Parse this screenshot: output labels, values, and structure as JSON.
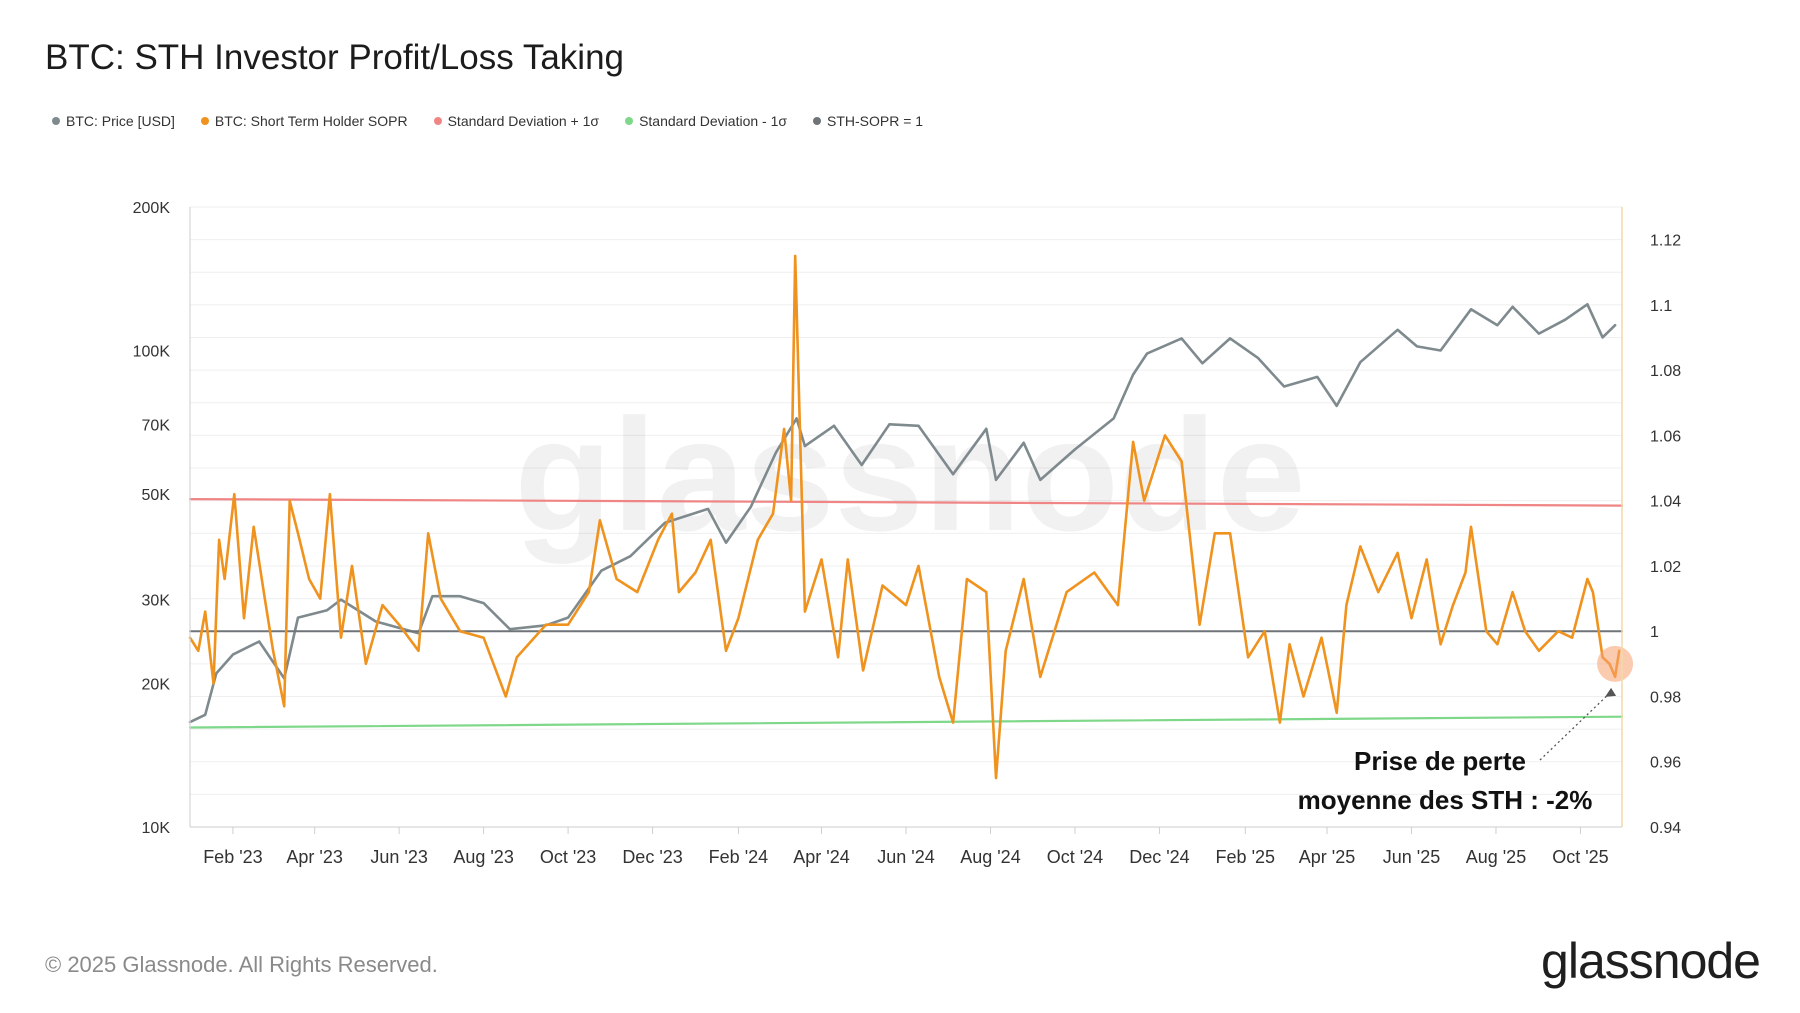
{
  "title": "BTC: STH Investor Profit/Loss Taking",
  "legend": [
    {
      "label": "BTC: Price [USD]",
      "color": "#7f8a8e"
    },
    {
      "label": "BTC: Short Term Holder SOPR",
      "color": "#f0921e"
    },
    {
      "label": "Standard Deviation + 1σ",
      "color": "#ef8585"
    },
    {
      "label": "Standard Deviation - 1σ",
      "color": "#7fd88a"
    },
    {
      "label": "STH-SOPR = 1",
      "color": "#6f7478"
    }
  ],
  "footer": "© 2025 Glassnode. All Rights Reserved.",
  "logo": "glassnode",
  "watermark": "glassnode",
  "annotation": {
    "line1": "Prise de perte",
    "line2": "moyenne des STH : -2%"
  },
  "chart_data": {
    "type": "line",
    "title": "BTC: STH Investor Profit/Loss Taking",
    "x_range": [
      "2023-01-01",
      "2025-10-31"
    ],
    "x_ticks": [
      {
        "label": "Feb '23",
        "date": "2023-02-01"
      },
      {
        "label": "Apr '23",
        "date": "2023-04-01"
      },
      {
        "label": "Jun '23",
        "date": "2023-06-01"
      },
      {
        "label": "Aug '23",
        "date": "2023-08-01"
      },
      {
        "label": "Oct '23",
        "date": "2023-10-01"
      },
      {
        "label": "Dec '23",
        "date": "2023-12-01"
      },
      {
        "label": "Feb '24",
        "date": "2024-02-01"
      },
      {
        "label": "Apr '24",
        "date": "2024-04-01"
      },
      {
        "label": "Jun '24",
        "date": "2024-06-01"
      },
      {
        "label": "Aug '24",
        "date": "2024-08-01"
      },
      {
        "label": "Oct '24",
        "date": "2024-10-01"
      },
      {
        "label": "Dec '24",
        "date": "2024-12-01"
      },
      {
        "label": "Feb '25",
        "date": "2025-02-01"
      },
      {
        "label": "Apr '25",
        "date": "2025-04-01"
      },
      {
        "label": "Jun '25",
        "date": "2025-06-01"
      },
      {
        "label": "Aug '25",
        "date": "2025-08-01"
      },
      {
        "label": "Oct '25",
        "date": "2025-10-01"
      }
    ],
    "y_left": {
      "scale": "log",
      "range": [
        10000,
        200000
      ],
      "ticks": [
        {
          "v": 10000,
          "label": "10K"
        },
        {
          "v": 20000,
          "label": "20K"
        },
        {
          "v": 30000,
          "label": "30K"
        },
        {
          "v": 50000,
          "label": "50K"
        },
        {
          "v": 70000,
          "label": "70K"
        },
        {
          "v": 100000,
          "label": "100K"
        },
        {
          "v": 200000,
          "label": "200K"
        }
      ]
    },
    "y_right": {
      "scale": "linear",
      "range": [
        0.94,
        1.13
      ],
      "ticks": [
        {
          "v": 0.94,
          "label": "0.94"
        },
        {
          "v": 0.96,
          "label": "0.96"
        },
        {
          "v": 0.98,
          "label": "0.98"
        },
        {
          "v": 1.0,
          "label": "1"
        },
        {
          "v": 1.02,
          "label": "1.02"
        },
        {
          "v": 1.04,
          "label": "1.04"
        },
        {
          "v": 1.06,
          "label": "1.06"
        },
        {
          "v": 1.08,
          "label": "1.08"
        },
        {
          "v": 1.1,
          "label": "1.1"
        },
        {
          "v": 1.12,
          "label": "1.12"
        }
      ]
    },
    "series": [
      {
        "name": "BTC: Price [USD]",
        "axis": "left",
        "color": "#7f8a8e",
        "points": [
          [
            "2023-01-01",
            16600
          ],
          [
            "2023-01-12",
            17200
          ],
          [
            "2023-01-20",
            21000
          ],
          [
            "2023-02-01",
            23000
          ],
          [
            "2023-02-20",
            24500
          ],
          [
            "2023-03-10",
            20500
          ],
          [
            "2023-03-20",
            27500
          ],
          [
            "2023-04-10",
            28500
          ],
          [
            "2023-04-20",
            30000
          ],
          [
            "2023-05-15",
            27000
          ],
          [
            "2023-06-15",
            25500
          ],
          [
            "2023-06-25",
            30500
          ],
          [
            "2023-07-15",
            30500
          ],
          [
            "2023-08-01",
            29500
          ],
          [
            "2023-08-20",
            26000
          ],
          [
            "2023-09-15",
            26500
          ],
          [
            "2023-10-01",
            27500
          ],
          [
            "2023-10-25",
            34500
          ],
          [
            "2023-11-15",
            37000
          ],
          [
            "2023-12-10",
            43500
          ],
          [
            "2024-01-10",
            46500
          ],
          [
            "2024-01-23",
            39500
          ],
          [
            "2024-02-10",
            47000
          ],
          [
            "2024-02-28",
            61000
          ],
          [
            "2024-03-14",
            72000
          ],
          [
            "2024-03-20",
            63000
          ],
          [
            "2024-04-10",
            69500
          ],
          [
            "2024-04-30",
            57500
          ],
          [
            "2024-05-20",
            70000
          ],
          [
            "2024-06-10",
            69500
          ],
          [
            "2024-07-05",
            55000
          ],
          [
            "2024-07-29",
            68500
          ],
          [
            "2024-08-05",
            53500
          ],
          [
            "2024-08-25",
            64000
          ],
          [
            "2024-09-06",
            53500
          ],
          [
            "2024-10-01",
            62000
          ],
          [
            "2024-10-29",
            72000
          ],
          [
            "2024-11-12",
            89000
          ],
          [
            "2024-11-22",
            98500
          ],
          [
            "2024-12-17",
            106000
          ],
          [
            "2025-01-01",
            94000
          ],
          [
            "2025-01-21",
            106000
          ],
          [
            "2025-02-10",
            96500
          ],
          [
            "2025-03-01",
            84000
          ],
          [
            "2025-03-25",
            88000
          ],
          [
            "2025-04-08",
            76500
          ],
          [
            "2025-04-25",
            94500
          ],
          [
            "2025-05-22",
            110500
          ],
          [
            "2025-06-05",
            102000
          ],
          [
            "2025-06-22",
            100000
          ],
          [
            "2025-07-14",
            122000
          ],
          [
            "2025-08-02",
            113000
          ],
          [
            "2025-08-13",
            123500
          ],
          [
            "2025-09-01",
            108500
          ],
          [
            "2025-09-20",
            116000
          ],
          [
            "2025-10-06",
            125000
          ],
          [
            "2025-10-17",
            106500
          ],
          [
            "2025-10-26",
            113000
          ]
        ]
      },
      {
        "name": "BTC: Short Term Holder SOPR",
        "axis": "right",
        "color": "#f0921e",
        "points": [
          [
            "2023-01-01",
            0.998
          ],
          [
            "2023-01-07",
            0.994
          ],
          [
            "2023-01-12",
            1.006
          ],
          [
            "2023-01-18",
            0.984
          ],
          [
            "2023-01-22",
            1.028
          ],
          [
            "2023-01-26",
            1.016
          ],
          [
            "2023-02-02",
            1.042
          ],
          [
            "2023-02-09",
            1.004
          ],
          [
            "2023-02-16",
            1.032
          ],
          [
            "2023-02-24",
            1.01
          ],
          [
            "2023-03-02",
            0.994
          ],
          [
            "2023-03-10",
            0.977
          ],
          [
            "2023-03-14",
            1.04
          ],
          [
            "2023-03-20",
            1.03
          ],
          [
            "2023-03-28",
            1.016
          ],
          [
            "2023-04-05",
            1.01
          ],
          [
            "2023-04-12",
            1.042
          ],
          [
            "2023-04-20",
            0.998
          ],
          [
            "2023-04-28",
            1.02
          ],
          [
            "2023-05-08",
            0.99
          ],
          [
            "2023-05-20",
            1.008
          ],
          [
            "2023-06-01",
            1.002
          ],
          [
            "2023-06-15",
            0.994
          ],
          [
            "2023-06-22",
            1.03
          ],
          [
            "2023-07-01",
            1.01
          ],
          [
            "2023-07-15",
            1.0
          ],
          [
            "2023-08-01",
            0.998
          ],
          [
            "2023-08-17",
            0.98
          ],
          [
            "2023-08-25",
            0.992
          ],
          [
            "2023-09-15",
            1.002
          ],
          [
            "2023-10-01",
            1.002
          ],
          [
            "2023-10-16",
            1.012
          ],
          [
            "2023-10-24",
            1.034
          ],
          [
            "2023-11-05",
            1.016
          ],
          [
            "2023-11-20",
            1.012
          ],
          [
            "2023-12-05",
            1.028
          ],
          [
            "2023-12-15",
            1.036
          ],
          [
            "2023-12-20",
            1.012
          ],
          [
            "2024-01-01",
            1.018
          ],
          [
            "2024-01-12",
            1.028
          ],
          [
            "2024-01-23",
            0.994
          ],
          [
            "2024-02-01",
            1.004
          ],
          [
            "2024-02-15",
            1.028
          ],
          [
            "2024-02-26",
            1.036
          ],
          [
            "2024-03-05",
            1.062
          ],
          [
            "2024-03-10",
            1.04
          ],
          [
            "2024-03-13",
            1.115
          ],
          [
            "2024-03-20",
            1.006
          ],
          [
            "2024-04-01",
            1.022
          ],
          [
            "2024-04-13",
            0.992
          ],
          [
            "2024-04-20",
            1.022
          ],
          [
            "2024-05-01",
            0.988
          ],
          [
            "2024-05-15",
            1.014
          ],
          [
            "2024-06-01",
            1.008
          ],
          [
            "2024-06-10",
            1.02
          ],
          [
            "2024-06-25",
            0.986
          ],
          [
            "2024-07-05",
            0.972
          ],
          [
            "2024-07-15",
            1.016
          ],
          [
            "2024-07-29",
            1.012
          ],
          [
            "2024-08-05",
            0.955
          ],
          [
            "2024-08-12",
            0.994
          ],
          [
            "2024-08-25",
            1.016
          ],
          [
            "2024-09-06",
            0.986
          ],
          [
            "2024-09-25",
            1.012
          ],
          [
            "2024-10-15",
            1.018
          ],
          [
            "2024-11-01",
            1.008
          ],
          [
            "2024-11-12",
            1.058
          ],
          [
            "2024-11-20",
            1.04
          ],
          [
            "2024-12-05",
            1.06
          ],
          [
            "2024-12-17",
            1.052
          ],
          [
            "2024-12-30",
            1.002
          ],
          [
            "2025-01-10",
            1.03
          ],
          [
            "2025-01-21",
            1.03
          ],
          [
            "2025-02-03",
            0.992
          ],
          [
            "2025-02-15",
            1.0
          ],
          [
            "2025-02-26",
            0.972
          ],
          [
            "2025-03-05",
            0.996
          ],
          [
            "2025-03-15",
            0.98
          ],
          [
            "2025-03-28",
            0.998
          ],
          [
            "2025-04-08",
            0.975
          ],
          [
            "2025-04-15",
            1.008
          ],
          [
            "2025-04-25",
            1.026
          ],
          [
            "2025-05-08",
            1.012
          ],
          [
            "2025-05-22",
            1.024
          ],
          [
            "2025-06-01",
            1.004
          ],
          [
            "2025-06-12",
            1.022
          ],
          [
            "2025-06-22",
            0.996
          ],
          [
            "2025-07-01",
            1.008
          ],
          [
            "2025-07-10",
            1.018
          ],
          [
            "2025-07-14",
            1.032
          ],
          [
            "2025-07-25",
            1.0
          ],
          [
            "2025-08-02",
            0.996
          ],
          [
            "2025-08-13",
            1.012
          ],
          [
            "2025-08-22",
            1.0
          ],
          [
            "2025-09-01",
            0.994
          ],
          [
            "2025-09-15",
            1.0
          ],
          [
            "2025-09-25",
            0.998
          ],
          [
            "2025-10-06",
            1.016
          ],
          [
            "2025-10-10",
            1.012
          ],
          [
            "2025-10-17",
            0.992
          ],
          [
            "2025-10-22",
            0.99
          ],
          [
            "2025-10-26",
            0.986
          ],
          [
            "2025-10-29",
            0.994
          ]
        ]
      },
      {
        "name": "Standard Deviation + 1σ",
        "axis": "right",
        "color": "#ef8585",
        "points": [
          [
            "2023-01-01",
            1.0405
          ],
          [
            "2025-10-31",
            1.0385
          ]
        ]
      },
      {
        "name": "Standard Deviation - 1σ",
        "axis": "right",
        "color": "#7fd88a",
        "points": [
          [
            "2023-01-01",
            0.9705
          ],
          [
            "2025-10-31",
            0.9738
          ]
        ]
      },
      {
        "name": "STH-SOPR = 1",
        "axis": "right",
        "color": "#6f7478",
        "points": [
          [
            "2023-01-01",
            1.0
          ],
          [
            "2025-10-31",
            1.0
          ]
        ]
      }
    ],
    "highlight": {
      "date": "2025-10-26",
      "value": 0.99
    }
  }
}
